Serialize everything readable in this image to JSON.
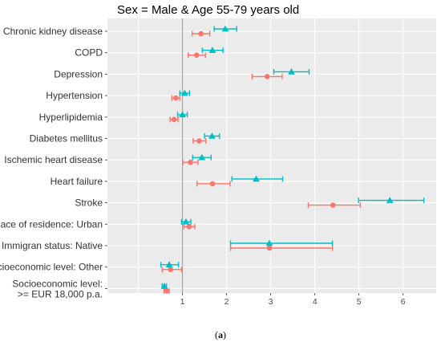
{
  "chart_data": {
    "type": "forest",
    "title": "Sex = Male & Age 55-79 years old",
    "caption_prefix": "(",
    "caption_letter": "a",
    "caption_suffix": ")",
    "xlim": [
      -0.7,
      6.75
    ],
    "x_ticks": [
      1,
      2,
      3,
      4,
      5,
      6
    ],
    "reference_line": 1,
    "grid": true,
    "legend": "none",
    "colors": {
      "panel_bg": "#ebebeb",
      "grid_major": "#ffffff",
      "reference": "#a6a6a6",
      "series_1": "#00bfc4",
      "series_2": "#f8766d"
    },
    "series": [
      {
        "marker": "triangle",
        "color": "#00bfc4"
      },
      {
        "marker": "circle",
        "color": "#f8766d"
      }
    ],
    "categories": [
      "Chronic kidney disease",
      "COPD",
      "Depression",
      "Hypertension",
      "Hyperlipidemia",
      "Diabetes mellitus",
      "Ischemic heart disease",
      "Heart failure",
      "Stroke",
      "Place of residence: Urban",
      "Immigran status: Native",
      "Socioeconomic level: Other",
      [
        "Socioeconomic level:",
        ">= EUR 18,000 p.a."
      ]
    ],
    "data": [
      {
        "s1": {
          "est": 1.97,
          "lo": 1.72,
          "hi": 2.23
        },
        "s2": {
          "est": 1.42,
          "lo": 1.22,
          "hi": 1.62
        }
      },
      {
        "s1": {
          "est": 1.68,
          "lo": 1.45,
          "hi": 1.92
        },
        "s2": {
          "est": 1.32,
          "lo": 1.13,
          "hi": 1.52
        }
      },
      {
        "s1": {
          "est": 3.47,
          "lo": 3.07,
          "hi": 3.87
        },
        "s2": {
          "est": 2.92,
          "lo": 2.58,
          "hi": 3.26
        }
      },
      {
        "s1": {
          "est": 1.05,
          "lo": 0.94,
          "hi": 1.16
        },
        "s2": {
          "est": 0.85,
          "lo": 0.76,
          "hi": 0.94
        }
      },
      {
        "s1": {
          "est": 1.0,
          "lo": 0.89,
          "hi": 1.11
        },
        "s2": {
          "est": 0.81,
          "lo": 0.72,
          "hi": 0.9
        }
      },
      {
        "s1": {
          "est": 1.67,
          "lo": 1.5,
          "hi": 1.84
        },
        "s2": {
          "est": 1.38,
          "lo": 1.24,
          "hi": 1.53
        }
      },
      {
        "s1": {
          "est": 1.44,
          "lo": 1.23,
          "hi": 1.65
        },
        "s2": {
          "est": 1.18,
          "lo": 1.01,
          "hi": 1.35
        }
      },
      {
        "s1": {
          "est": 2.67,
          "lo": 2.12,
          "hi": 3.27
        },
        "s2": {
          "est": 1.68,
          "lo": 1.33,
          "hi": 2.08
        }
      },
      {
        "s1": {
          "est": 5.7,
          "lo": 4.99,
          "hi": 6.47
        },
        "s2": {
          "est": 4.41,
          "lo": 3.85,
          "hi": 5.03
        }
      },
      {
        "s1": {
          "est": 1.08,
          "lo": 0.98,
          "hi": 1.19
        },
        "s2": {
          "est": 1.15,
          "lo": 1.03,
          "hi": 1.28
        }
      },
      {
        "s1": {
          "est": 2.97,
          "lo": 2.09,
          "hi": 4.4
        },
        "s2": {
          "est": 2.97,
          "lo": 2.09,
          "hi": 4.4
        }
      },
      {
        "s1": {
          "est": 0.7,
          "lo": 0.51,
          "hi": 0.91
        },
        "s2": {
          "est": 0.73,
          "lo": 0.54,
          "hi": 0.98
        }
      },
      {
        "s1": {
          "est": 0.59,
          "lo": 0.54,
          "hi": 0.64
        },
        "s2": {
          "est": 0.64,
          "lo": 0.58,
          "hi": 0.7
        }
      }
    ]
  }
}
